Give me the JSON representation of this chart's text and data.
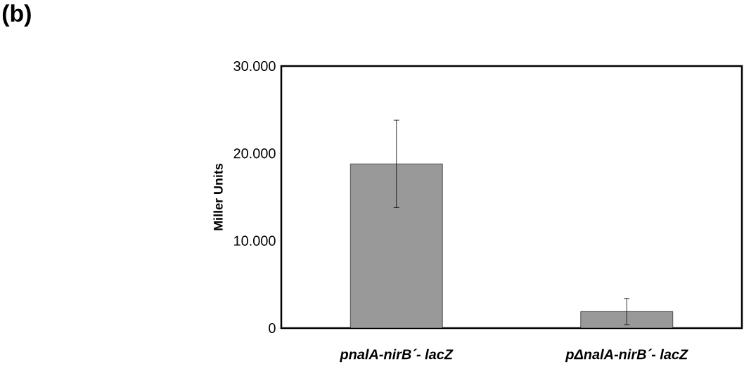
{
  "chart_data": {
    "type": "bar",
    "title": "(b)",
    "ylabel": "Miller Units",
    "categories": [
      "pnalA-nirB´- lacZ",
      "pΔnalA-nirB´- lacZ"
    ],
    "values": [
      18800,
      1900
    ],
    "errors": [
      5000,
      1500
    ],
    "color": "#999999",
    "ylim": [
      0,
      30000
    ],
    "yticks": [
      {
        "value": 0,
        "label": "0"
      },
      {
        "value": 10000,
        "label": "10.000"
      },
      {
        "value": 20000,
        "label": "20.000"
      },
      {
        "value": 30000,
        "label": "30.000"
      }
    ],
    "grid": false
  }
}
